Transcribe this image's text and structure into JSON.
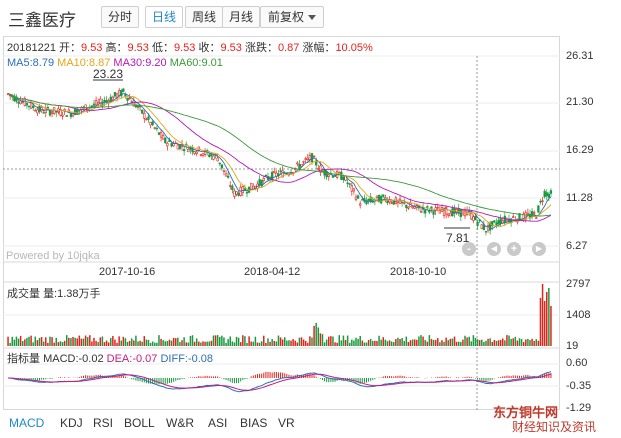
{
  "stock": {
    "name": "三鑫医疗"
  },
  "toolbar": {
    "tabs": [
      {
        "label": "分时"
      },
      {
        "label": "日线"
      },
      {
        "label": "周线"
      },
      {
        "label": "月线"
      },
      {
        "label": "前复权"
      }
    ],
    "active": "日线"
  },
  "quote": {
    "date": "20181221",
    "open_label": "开：",
    "open": "9.53",
    "high_label": "高：",
    "high": "9.53",
    "low_label": "低：",
    "low": "9.53",
    "close_label": "收：",
    "close": "9.53",
    "change_label": "涨跌：",
    "change": "0.87",
    "pct_label": "涨幅：",
    "pct": "10.05%"
  },
  "ma": {
    "ma5": "MA5:8.79",
    "ma10": "MA10:8.87",
    "ma30": "MA30:9.20",
    "ma60": "MA60:9.01"
  },
  "colors": {
    "up": "#e2231a",
    "down": "#1a9a3e",
    "ma5": "#2d6fb5",
    "ma10": "#e9a417",
    "ma30": "#b21bb5",
    "ma60": "#3b9a3b",
    "accent": "#1e88c8"
  },
  "price_axis": [
    "26.31",
    "21.30",
    "16.29",
    "11.28",
    "6.27"
  ],
  "annotations": {
    "high": "23.23",
    "low": "7.81"
  },
  "dates": [
    "2017-10-16",
    "2018-04-12",
    "2018-10-10"
  ],
  "powered_by": "Powered by 10jqka",
  "zoom": {
    "out": "-",
    "prev": "◀",
    "in": "+",
    "next": "▶"
  },
  "volume": {
    "label": "成交量",
    "value": "量:1.38万手",
    "axis": [
      "2797",
      "1408",
      "19"
    ]
  },
  "macd": {
    "label": "指标量",
    "macd": "MACD:-0.02",
    "dea": "DEA:-0.07",
    "diff": "DIFF:-0.08",
    "axis": [
      "0.60",
      "-0.35",
      "-1.29"
    ]
  },
  "indicators": [
    "MACD",
    "KDJ",
    "RSI",
    "BOLL",
    "W&R",
    "ASI",
    "BIAS",
    "VR"
  ],
  "watermark": {
    "line1": "东方铜牛网",
    "line2": "财经知识及资讯"
  }
}
